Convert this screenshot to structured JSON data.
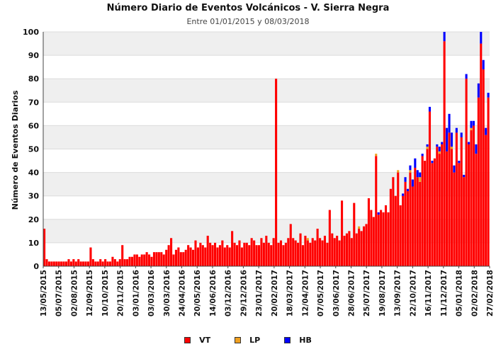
{
  "chart_data": {
    "type": "bar",
    "title": "Número Diario de Eventos Volcánicos -  V. Sierra Negra",
    "subtitle": "Entre 01/01/2015 y 08/03/2018",
    "xlabel": "",
    "ylabel": "Número de Eventos Diarios",
    "ylim": [
      0,
      100
    ],
    "yticks": [
      0,
      10,
      20,
      30,
      40,
      50,
      60,
      70,
      80,
      90,
      100
    ],
    "grid": "horizontal bands",
    "legend_position": "bottom",
    "x_tick_labels": [
      "13/05/2015",
      "05/07/2015",
      "02/08/2015",
      "12/09/2015",
      "10/10/2015",
      "20/11/2015",
      "03/01/2016",
      "03/03/2016",
      "30/03/2016",
      "24/04/2016",
      "20/05/2016",
      "14/06/2016",
      "03/12/2016",
      "29/12/2016",
      "23/01/2017",
      "20/02/2017",
      "18/03/2017",
      "12/04/2017",
      "07/05/2017",
      "03/06/2017",
      "28/06/2017",
      "25/07/2017",
      "19/08/2017",
      "13/09/2017",
      "22/10/2017",
      "16/11/2017",
      "11/12/2017",
      "05/01/2018",
      "02/02/2018",
      "27/02/2018"
    ],
    "series": [
      {
        "name": "VT",
        "color": "#ff0000",
        "values": [
          16,
          3,
          2,
          2,
          2,
          2,
          2,
          2,
          2,
          2,
          3,
          2,
          3,
          2,
          3,
          2,
          2,
          2,
          2,
          8,
          3,
          2,
          2,
          3,
          2,
          3,
          2,
          2,
          4,
          3,
          2,
          3,
          9,
          3,
          3,
          4,
          4,
          5,
          5,
          4,
          5,
          5,
          6,
          5,
          4,
          6,
          6,
          6,
          6,
          5,
          7,
          9,
          12,
          5,
          7,
          8,
          6,
          6,
          7,
          9,
          8,
          7,
          11,
          8,
          10,
          9,
          8,
          13,
          10,
          9,
          10,
          8,
          9,
          11,
          8,
          9,
          8,
          15,
          10,
          9,
          11,
          8,
          10,
          10,
          9,
          12,
          11,
          9,
          9,
          12,
          10,
          13,
          10,
          9,
          12,
          80,
          10,
          11,
          9,
          10,
          12,
          18,
          12,
          11,
          10,
          14,
          9,
          13,
          11,
          10,
          12,
          11,
          16,
          12,
          11,
          13,
          10,
          24,
          14,
          12,
          13,
          11,
          28,
          13,
          14,
          15,
          12,
          27,
          14,
          16,
          15,
          17,
          18,
          29,
          24,
          21,
          47,
          22,
          24,
          23,
          26,
          23,
          33,
          38,
          30,
          40,
          26,
          30,
          36,
          32,
          40,
          34,
          42,
          38,
          36,
          47,
          45,
          50,
          66,
          44,
          46,
          51,
          48,
          52,
          96,
          49,
          57,
          50,
          40,
          57,
          44,
          55,
          38,
          80,
          52,
          58,
          60,
          48,
          72,
          95,
          84,
          56,
          72
        ]
      },
      {
        "name": "LP",
        "color": "#f0a020",
        "values": [
          0,
          0,
          0,
          0,
          0,
          0,
          0,
          0,
          0,
          0,
          0,
          0,
          0,
          0,
          0,
          0,
          0,
          0,
          0,
          0,
          0,
          0,
          0,
          0,
          0,
          0,
          0,
          0,
          0,
          0,
          0,
          0,
          0,
          0,
          0,
          0,
          0,
          0,
          0,
          0,
          0,
          0,
          0,
          0,
          0,
          0,
          0,
          0,
          0,
          0,
          0,
          0,
          0,
          0,
          0,
          0,
          0,
          0,
          0,
          0,
          0,
          0,
          0,
          0,
          0,
          0,
          0,
          0,
          0,
          0,
          0,
          0,
          0,
          0,
          0,
          0,
          0,
          0,
          0,
          0,
          0,
          0,
          0,
          0,
          0,
          0,
          0,
          0,
          0,
          0,
          0,
          0,
          0,
          0,
          0,
          0,
          0,
          0,
          0,
          0,
          0,
          0,
          0,
          0,
          0,
          0,
          0,
          0,
          1,
          0,
          0,
          0,
          0,
          0,
          0,
          0,
          0,
          0,
          0,
          0,
          0,
          0,
          0,
          0,
          0,
          0,
          0,
          0,
          0,
          1,
          0,
          0,
          0,
          0,
          0,
          0,
          1,
          0,
          0,
          0,
          0,
          0,
          0,
          0,
          0,
          1,
          0,
          0,
          0,
          0,
          1,
          0,
          0,
          0,
          2,
          0,
          0,
          1,
          0,
          0,
          0,
          0,
          1,
          0,
          0,
          0,
          0,
          1,
          0,
          0,
          0,
          0,
          0,
          0,
          0,
          1,
          0,
          0,
          0,
          0,
          0,
          0,
          0
        ]
      },
      {
        "name": "HB",
        "color": "#0000ff",
        "values": [
          0,
          0,
          0,
          0,
          0,
          0,
          0,
          0,
          0,
          0,
          0,
          0,
          0,
          0,
          0,
          0,
          0,
          0,
          0,
          0,
          0,
          0,
          0,
          0,
          0,
          0,
          0,
          0,
          0,
          0,
          0,
          0,
          0,
          0,
          0,
          0,
          0,
          0,
          0,
          0,
          0,
          0,
          0,
          0,
          0,
          0,
          0,
          0,
          0,
          0,
          0,
          0,
          0,
          0,
          0,
          0,
          0,
          0,
          0,
          0,
          0,
          0,
          0,
          0,
          0,
          0,
          0,
          0,
          0,
          0,
          0,
          0,
          0,
          0,
          0,
          0,
          0,
          0,
          0,
          0,
          0,
          0,
          0,
          0,
          0,
          0,
          0,
          0,
          0,
          0,
          0,
          0,
          0,
          0,
          0,
          0,
          0,
          0,
          0,
          0,
          0,
          0,
          0,
          0,
          0,
          0,
          0,
          0,
          0,
          0,
          0,
          0,
          0,
          0,
          0,
          0,
          0,
          0,
          0,
          0,
          0,
          0,
          0,
          0,
          0,
          0,
          0,
          0,
          0,
          0,
          0,
          0,
          0,
          0,
          0,
          0,
          0,
          1,
          0,
          0,
          0,
          0,
          0,
          0,
          0,
          0,
          0,
          1,
          2,
          1,
          2,
          3,
          4,
          3,
          2,
          1,
          0,
          1,
          2,
          1,
          0,
          1,
          2,
          1,
          4,
          10,
          8,
          6,
          3,
          2,
          1,
          2,
          1,
          2,
          1,
          3,
          2,
          4,
          6,
          5,
          4,
          3,
          2
        ]
      }
    ]
  }
}
